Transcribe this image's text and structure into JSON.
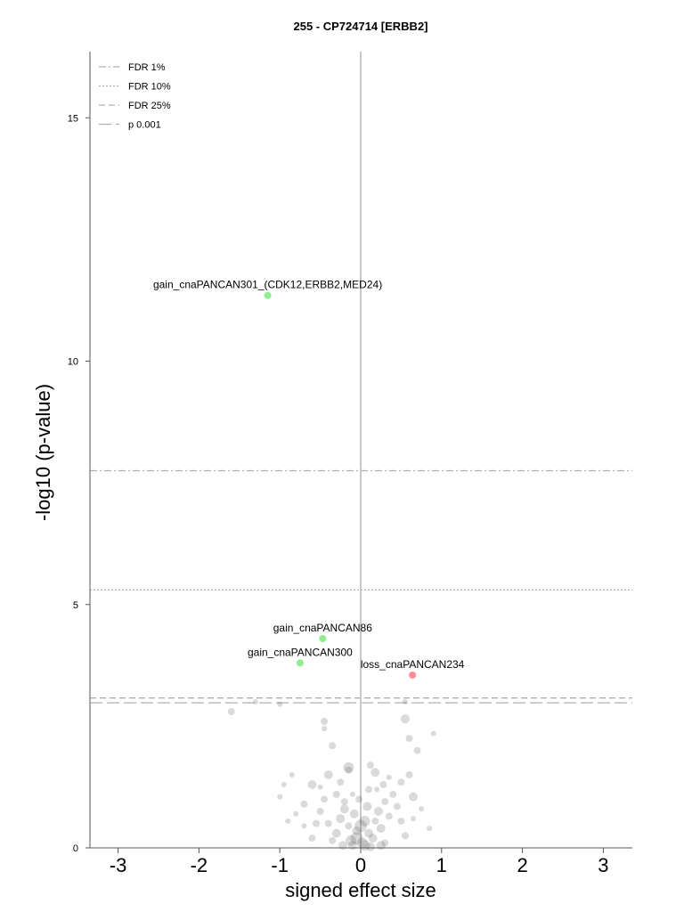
{
  "chart_data": {
    "type": "scatter",
    "title": "255 - CP724714 [ERBB2]",
    "xlabel": "signed effect size",
    "ylabel": "-log10 (p-value)",
    "xlim": [
      -3.4,
      3.35
    ],
    "ylim": [
      0,
      16.3
    ],
    "x_ticks": [
      "-3",
      "-2",
      "-1",
      "0",
      "1",
      "2",
      "3"
    ],
    "y_ticks": [
      "0",
      "5",
      "10",
      "15"
    ],
    "legend_position": "top-left",
    "legend": [
      {
        "label": "FDR 1%",
        "style": "dash-dot",
        "y": 7.75
      },
      {
        "label": "FDR 10%",
        "style": "dotted",
        "y": 5.3
      },
      {
        "label": "FDR 25%",
        "style": "dashed",
        "y": 3.08
      },
      {
        "label": "p 0.001",
        "style": "long-dash",
        "y": 2.98
      }
    ],
    "colors": {
      "gain": "#90ee90",
      "loss": "#ff8c94",
      "background": "#555555",
      "threshold": "#b0b0b0",
      "zero_line": "#c8c8c8"
    },
    "labeled_points": [
      {
        "label": "gain_cnaPANCAN301_(CDK12,ERBB2,MED24)",
        "x": -1.15,
        "y": 11.35,
        "type": "gain"
      },
      {
        "label": "gain_cnaPANCAN86",
        "x": -0.47,
        "y": 4.3,
        "type": "gain"
      },
      {
        "label": "gain_cnaPANCAN300",
        "x": -0.75,
        "y": 3.8,
        "type": "gain"
      },
      {
        "label": "loss_cnaPANCAN234",
        "x": 0.64,
        "y": 3.55,
        "type": "loss"
      }
    ],
    "background_points": [
      [
        -1.6,
        2.8,
        4
      ],
      [
        -1.3,
        3.0,
        3
      ],
      [
        -1.0,
        2.95,
        3
      ],
      [
        -0.45,
        2.6,
        4
      ],
      [
        -0.45,
        2.45,
        3
      ],
      [
        -0.35,
        2.1,
        4
      ],
      [
        0.55,
        2.65,
        5
      ],
      [
        0.6,
        2.25,
        4
      ],
      [
        0.7,
        2.0,
        4
      ],
      [
        0.9,
        2.35,
        3
      ],
      [
        0.55,
        3.0,
        3
      ],
      [
        -0.15,
        1.6,
        4
      ],
      [
        -0.85,
        1.5,
        3
      ],
      [
        -0.95,
        1.3,
        3
      ],
      [
        -1.0,
        1.05,
        3
      ],
      [
        -0.7,
        0.9,
        4
      ],
      [
        -0.6,
        1.3,
        5
      ],
      [
        0.6,
        1.5,
        4
      ],
      [
        0.65,
        1.05,
        5
      ],
      [
        0.5,
        1.35,
        4
      ],
      [
        -0.15,
        1.65,
        6
      ],
      [
        0.18,
        1.55,
        5
      ],
      [
        0.1,
        1.2,
        4
      ],
      [
        -0.3,
        1.1,
        4
      ],
      [
        -0.2,
        0.95,
        4
      ],
      [
        0.3,
        0.95,
        4
      ],
      [
        -0.1,
        1.1,
        3
      ],
      [
        0.2,
        1.2,
        3
      ],
      [
        -0.25,
        0.6,
        5
      ],
      [
        -0.05,
        0.35,
        5
      ],
      [
        0.05,
        0.55,
        6
      ],
      [
        0.1,
        0.3,
        5
      ],
      [
        -0.12,
        0.15,
        6
      ],
      [
        0.02,
        0.1,
        6
      ],
      [
        0.15,
        0.2,
        5
      ],
      [
        -0.3,
        0.3,
        5
      ],
      [
        0.25,
        0.4,
        5
      ],
      [
        -0.4,
        0.5,
        4
      ],
      [
        0.35,
        0.65,
        4
      ],
      [
        0.45,
        0.85,
        4
      ],
      [
        -0.5,
        0.75,
        4
      ],
      [
        -0.55,
        0.5,
        4
      ],
      [
        0.5,
        0.55,
        4
      ],
      [
        -0.2,
        0.8,
        5
      ],
      [
        0.22,
        0.75,
        5
      ],
      [
        -0.08,
        0.7,
        5
      ],
      [
        0.08,
        0.85,
        5
      ],
      [
        0.0,
        0.45,
        7
      ],
      [
        -0.05,
        0.2,
        7
      ],
      [
        0.05,
        0.05,
        6
      ],
      [
        -0.35,
        0.15,
        4
      ],
      [
        0.3,
        0.1,
        4
      ],
      [
        -0.6,
        0.2,
        4
      ],
      [
        0.55,
        0.25,
        4
      ],
      [
        -0.45,
        1.0,
        4
      ],
      [
        0.4,
        1.1,
        4
      ],
      [
        -0.7,
        0.45,
        3
      ],
      [
        0.65,
        0.6,
        3
      ],
      [
        -0.25,
        1.35,
        4
      ],
      [
        0.28,
        1.3,
        4
      ],
      [
        -0.4,
        1.5,
        5
      ],
      [
        0.12,
        1.7,
        4
      ],
      [
        -0.02,
        1.0,
        4
      ],
      [
        0.18,
        0.55,
        4
      ],
      [
        -0.15,
        0.45,
        4
      ],
      [
        -0.8,
        0.7,
        3
      ],
      [
        0.75,
        0.8,
        3
      ],
      [
        -0.9,
        0.55,
        3
      ],
      [
        0.85,
        0.4,
        3
      ],
      [
        -0.1,
        0.05,
        5
      ],
      [
        0.12,
        0.02,
        5
      ],
      [
        -0.22,
        0.05,
        5
      ],
      [
        0.25,
        0.05,
        5
      ],
      [
        0.35,
        1.45,
        3
      ],
      [
        -0.5,
        1.25,
        3
      ]
    ]
  }
}
